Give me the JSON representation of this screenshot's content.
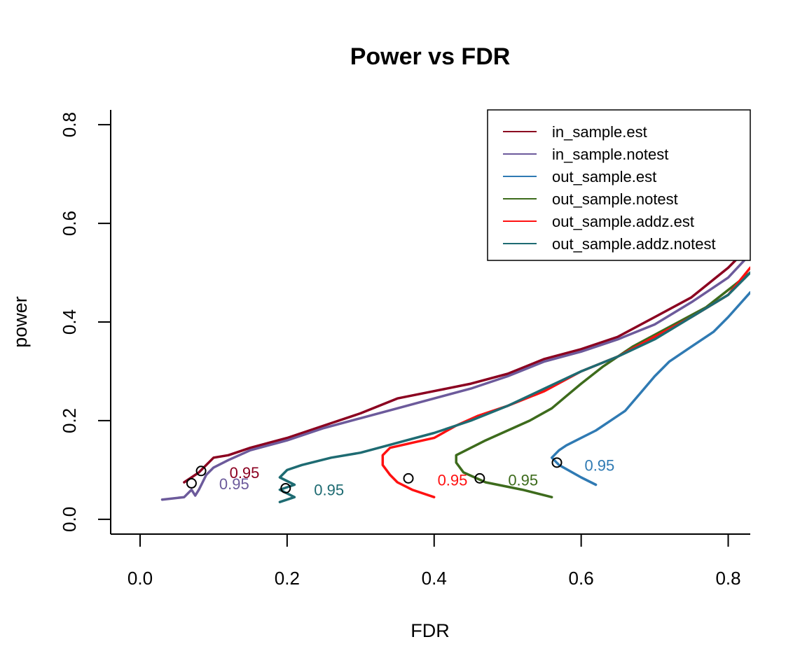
{
  "chart_data": {
    "type": "line",
    "title": "Power vs FDR",
    "xlabel": "FDR",
    "ylabel": "power",
    "xlim": [
      -0.04,
      0.83
    ],
    "ylim": [
      -0.03,
      0.83
    ],
    "xticks": [
      0.0,
      0.2,
      0.4,
      0.6,
      0.8
    ],
    "xtick_labels": [
      "0.0",
      "0.2",
      "0.4",
      "0.6",
      "0.8"
    ],
    "yticks": [
      0.0,
      0.2,
      0.4,
      0.6,
      0.8
    ],
    "ytick_labels": [
      "0.0",
      "0.2",
      "0.4",
      "0.6",
      "0.8"
    ],
    "grid": false,
    "legend_position": "top-right",
    "series": [
      {
        "name": "in_sample.est",
        "color": "#8b0020",
        "points": [
          [
            0.06,
            0.075
          ],
          [
            0.07,
            0.085
          ],
          [
            0.08,
            0.095
          ],
          [
            0.09,
            0.11
          ],
          [
            0.1,
            0.125
          ],
          [
            0.12,
            0.13
          ],
          [
            0.15,
            0.145
          ],
          [
            0.2,
            0.165
          ],
          [
            0.25,
            0.19
          ],
          [
            0.3,
            0.215
          ],
          [
            0.35,
            0.245
          ],
          [
            0.4,
            0.26
          ],
          [
            0.45,
            0.275
          ],
          [
            0.5,
            0.295
          ],
          [
            0.55,
            0.325
          ],
          [
            0.6,
            0.345
          ],
          [
            0.65,
            0.37
          ],
          [
            0.7,
            0.41
          ],
          [
            0.75,
            0.45
          ],
          [
            0.8,
            0.51
          ],
          [
            0.82,
            0.54
          ]
        ],
        "marker": [
          0.083,
          0.098
        ],
        "label": "0.95",
        "label_at": [
          0.142,
          0.095
        ]
      },
      {
        "name": "in_sample.notest",
        "color": "#6c5a9b",
        "points": [
          [
            0.03,
            0.04
          ],
          [
            0.06,
            0.045
          ],
          [
            0.07,
            0.06
          ],
          [
            0.075,
            0.048
          ],
          [
            0.08,
            0.06
          ],
          [
            0.085,
            0.075
          ],
          [
            0.09,
            0.09
          ],
          [
            0.1,
            0.105
          ],
          [
            0.12,
            0.12
          ],
          [
            0.15,
            0.14
          ],
          [
            0.2,
            0.16
          ],
          [
            0.25,
            0.185
          ],
          [
            0.3,
            0.205
          ],
          [
            0.35,
            0.225
          ],
          [
            0.4,
            0.245
          ],
          [
            0.45,
            0.265
          ],
          [
            0.5,
            0.29
          ],
          [
            0.55,
            0.32
          ],
          [
            0.6,
            0.34
          ],
          [
            0.65,
            0.365
          ],
          [
            0.7,
            0.395
          ],
          [
            0.75,
            0.44
          ],
          [
            0.8,
            0.49
          ],
          [
            0.825,
            0.53
          ]
        ],
        "marker": [
          0.07,
          0.073
        ],
        "label": "0.95",
        "label_at": [
          0.128,
          0.072
        ]
      },
      {
        "name": "out_sample.est",
        "color": "#2f7ab3",
        "points": [
          [
            0.62,
            0.07
          ],
          [
            0.6,
            0.085
          ],
          [
            0.57,
            0.11
          ],
          [
            0.56,
            0.125
          ],
          [
            0.57,
            0.14
          ],
          [
            0.58,
            0.15
          ],
          [
            0.6,
            0.165
          ],
          [
            0.62,
            0.18
          ],
          [
            0.64,
            0.2
          ],
          [
            0.66,
            0.22
          ],
          [
            0.68,
            0.255
          ],
          [
            0.7,
            0.29
          ],
          [
            0.72,
            0.32
          ],
          [
            0.75,
            0.35
          ],
          [
            0.78,
            0.38
          ],
          [
            0.8,
            0.41
          ],
          [
            0.83,
            0.46
          ]
        ],
        "marker": [
          0.567,
          0.115
        ],
        "label": "0.95",
        "label_at": [
          0.625,
          0.11
        ]
      },
      {
        "name": "out_sample.notest",
        "color": "#3d6b1c",
        "points": [
          [
            0.56,
            0.045
          ],
          [
            0.52,
            0.06
          ],
          [
            0.47,
            0.075
          ],
          [
            0.44,
            0.095
          ],
          [
            0.43,
            0.115
          ],
          [
            0.43,
            0.13
          ],
          [
            0.45,
            0.145
          ],
          [
            0.47,
            0.16
          ],
          [
            0.5,
            0.18
          ],
          [
            0.53,
            0.2
          ],
          [
            0.56,
            0.225
          ],
          [
            0.58,
            0.25
          ],
          [
            0.6,
            0.275
          ],
          [
            0.63,
            0.31
          ],
          [
            0.67,
            0.35
          ],
          [
            0.72,
            0.39
          ],
          [
            0.77,
            0.43
          ],
          [
            0.83,
            0.5
          ]
        ],
        "marker": [
          0.462,
          0.083
        ],
        "label": "0.95",
        "label_at": [
          0.521,
          0.08
        ]
      },
      {
        "name": "out_sample.addz.est",
        "color": "#ff1111",
        "points": [
          [
            0.4,
            0.045
          ],
          [
            0.37,
            0.06
          ],
          [
            0.35,
            0.075
          ],
          [
            0.34,
            0.09
          ],
          [
            0.33,
            0.11
          ],
          [
            0.33,
            0.13
          ],
          [
            0.34,
            0.145
          ],
          [
            0.37,
            0.155
          ],
          [
            0.4,
            0.165
          ],
          [
            0.43,
            0.19
          ],
          [
            0.46,
            0.21
          ],
          [
            0.5,
            0.23
          ],
          [
            0.55,
            0.26
          ],
          [
            0.6,
            0.3
          ],
          [
            0.65,
            0.33
          ],
          [
            0.7,
            0.37
          ],
          [
            0.75,
            0.41
          ],
          [
            0.8,
            0.455
          ],
          [
            0.83,
            0.51
          ]
        ],
        "marker": [
          0.365,
          0.083
        ],
        "label": "0.95",
        "label_at": [
          0.425,
          0.08
        ]
      },
      {
        "name": "out_sample.addz.notest",
        "color": "#1e6b72",
        "points": [
          [
            0.19,
            0.035
          ],
          [
            0.21,
            0.045
          ],
          [
            0.19,
            0.06
          ],
          [
            0.21,
            0.07
          ],
          [
            0.19,
            0.085
          ],
          [
            0.2,
            0.1
          ],
          [
            0.22,
            0.11
          ],
          [
            0.26,
            0.125
          ],
          [
            0.3,
            0.135
          ],
          [
            0.35,
            0.155
          ],
          [
            0.4,
            0.175
          ],
          [
            0.45,
            0.2
          ],
          [
            0.5,
            0.23
          ],
          [
            0.55,
            0.265
          ],
          [
            0.6,
            0.3
          ],
          [
            0.65,
            0.33
          ],
          [
            0.7,
            0.365
          ],
          [
            0.75,
            0.41
          ],
          [
            0.8,
            0.455
          ],
          [
            0.83,
            0.5
          ]
        ],
        "marker": [
          0.198,
          0.063
        ],
        "label": "0.95",
        "label_at": [
          0.257,
          0.06
        ]
      }
    ]
  }
}
